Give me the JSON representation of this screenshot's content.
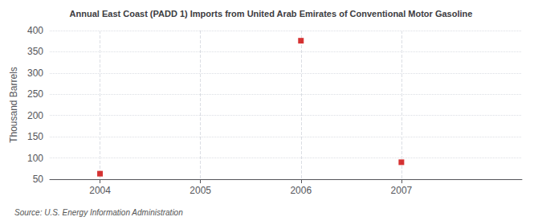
{
  "chart_data": {
    "type": "scatter",
    "title": "Annual East Coast (PADD 1) Imports from United Arab Emirates of Conventional Motor Gasoline",
    "ylabel": "Thousand Barrels",
    "source": "Source: U.S. Energy Information Administration",
    "x": [
      2004,
      2006,
      2007
    ],
    "values": [
      63,
      376,
      90
    ],
    "color": "#cc0000",
    "marker": "square",
    "xlim": [
      2003.5,
      2008.2
    ],
    "xticks": [
      2004,
      2005,
      2006,
      2007
    ],
    "ylim": [
      50,
      400
    ],
    "yticks": [
      50,
      100,
      150,
      200,
      250,
      300,
      350,
      400
    ],
    "grid": true
  }
}
